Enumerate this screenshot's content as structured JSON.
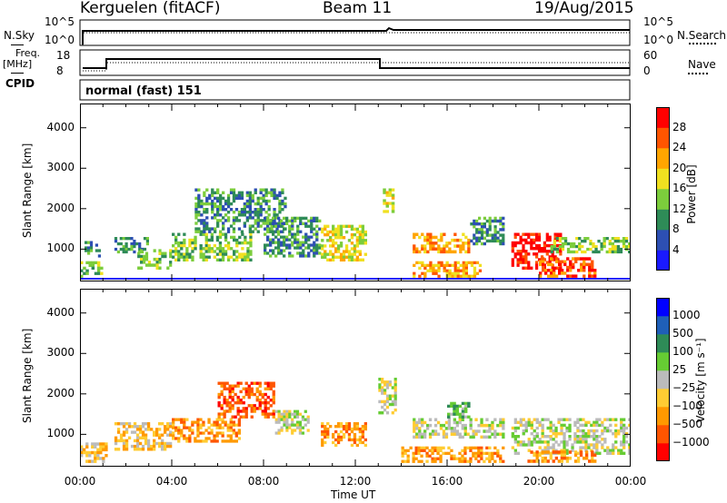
{
  "header": {
    "station": "Kerguelen (fitACF)",
    "beam": "Beam 11",
    "date": "19/Aug/2015"
  },
  "side_labels": {
    "nsky": "N.Sky",
    "freq_line1": "Freq.",
    "freq_line2": "[MHz]",
    "cpid": "CPID",
    "nsearch": "N.Search",
    "nave": "Nave"
  },
  "ticks": {
    "sky_top": "10^5",
    "sky_bottom": "10^0",
    "search_top": "10^5",
    "search_bottom": "10^0",
    "freq_top": "18",
    "freq_bottom": "8",
    "nave_top": "60",
    "nave_bottom": "0"
  },
  "cpid_text": "normal (fast) 151",
  "colors": {
    "power_scale": [
      "#1a1aff",
      "#2d4fb3",
      "#2e8b57",
      "#7ccd3c",
      "#f0e020",
      "#ffa500",
      "#ff5500",
      "#ff0000"
    ],
    "velocity_scale": [
      "#0000ff",
      "#1f5fb8",
      "#2e8b57",
      "#66cc33",
      "#bbbbbb",
      "#ffcc33",
      "#ff9900",
      "#ff5500",
      "#ff0000"
    ]
  },
  "chart_data": [
    {
      "type": "heatmap",
      "name_hint": "power",
      "xlabel": "",
      "ylabel": "Slant Range [km]",
      "ylim": [
        200,
        4600
      ],
      "xlim_hours": [
        0,
        24
      ],
      "yticks": [
        1000,
        2000,
        3000,
        4000
      ],
      "colorbar": {
        "label": "Power [dB]",
        "tick_labels": [
          "4",
          "8",
          "12",
          "16",
          "20",
          "24",
          "28"
        ]
      },
      "regions": [
        {
          "x0": 0.0,
          "x1": 1.0,
          "y0": 300,
          "y1": 700,
          "level": 3
        },
        {
          "x0": 0.2,
          "x1": 0.9,
          "y0": 800,
          "y1": 1200,
          "level": 2
        },
        {
          "x0": 1.5,
          "x1": 3.0,
          "y0": 900,
          "y1": 1300,
          "level": 2
        },
        {
          "x0": 2.5,
          "x1": 4.0,
          "y0": 500,
          "y1": 1000,
          "level": 3
        },
        {
          "x0": 4.0,
          "x1": 7.5,
          "y0": 700,
          "y1": 1400,
          "level": 3
        },
        {
          "x0": 5.0,
          "x1": 9.0,
          "y0": 1400,
          "y1": 2500,
          "level": 2
        },
        {
          "x0": 8.0,
          "x1": 10.5,
          "y0": 800,
          "y1": 1800,
          "level": 2
        },
        {
          "x0": 10.5,
          "x1": 12.5,
          "y0": 700,
          "y1": 1600,
          "level": 4
        },
        {
          "x0": 13.2,
          "x1": 13.7,
          "y0": 1900,
          "y1": 2500,
          "level": 4
        },
        {
          "x0": 14.5,
          "x1": 17.0,
          "y0": 900,
          "y1": 1400,
          "level": 5
        },
        {
          "x0": 14.5,
          "x1": 17.5,
          "y0": 300,
          "y1": 700,
          "level": 5
        },
        {
          "x0": 17.0,
          "x1": 18.5,
          "y0": 1100,
          "y1": 1800,
          "level": 2
        },
        {
          "x0": 18.8,
          "x1": 21.0,
          "y0": 500,
          "y1": 1400,
          "level": 7
        },
        {
          "x0": 20.0,
          "x1": 22.5,
          "y0": 300,
          "y1": 800,
          "level": 6
        },
        {
          "x0": 20.5,
          "x1": 24.0,
          "y0": 900,
          "y1": 1300,
          "level": 3
        }
      ]
    },
    {
      "type": "heatmap",
      "name_hint": "velocity",
      "xlabel": "Time UT",
      "ylabel": "Slant Range [km]",
      "ylim": [
        200,
        4600
      ],
      "xlim_hours": [
        0,
        24
      ],
      "xtick_labels": [
        "00:00",
        "04:00",
        "08:00",
        "12:00",
        "16:00",
        "20:00",
        "00:00"
      ],
      "yticks": [
        1000,
        2000,
        3000,
        4000
      ],
      "colorbar": {
        "label": "Velocity [m s⁻¹]",
        "tick_labels": [
          "1000",
          "500",
          "100",
          "25",
          "−25",
          "−100",
          "−500",
          "−1000"
        ]
      },
      "regions": [
        {
          "x0": 0.0,
          "x1": 1.2,
          "y0": 300,
          "y1": 800,
          "level": 5
        },
        {
          "x0": 1.5,
          "x1": 4.0,
          "y0": 600,
          "y1": 1300,
          "level": 5
        },
        {
          "x0": 4.0,
          "x1": 7.0,
          "y0": 800,
          "y1": 1400,
          "level": 6
        },
        {
          "x0": 6.0,
          "x1": 8.5,
          "y0": 1400,
          "y1": 2300,
          "level": 7
        },
        {
          "x0": 8.5,
          "x1": 10.0,
          "y0": 1000,
          "y1": 1600,
          "level": 4
        },
        {
          "x0": 10.5,
          "x1": 12.5,
          "y0": 700,
          "y1": 1300,
          "level": 6
        },
        {
          "x0": 13.0,
          "x1": 13.8,
          "y0": 1500,
          "y1": 2400,
          "level": 4
        },
        {
          "x0": 14.5,
          "x1": 18.5,
          "y0": 900,
          "y1": 1400,
          "level": 4
        },
        {
          "x0": 14.0,
          "x1": 18.5,
          "y0": 300,
          "y1": 700,
          "level": 6
        },
        {
          "x0": 16.0,
          "x1": 17.0,
          "y0": 1400,
          "y1": 1800,
          "level": 3
        },
        {
          "x0": 18.8,
          "x1": 24.0,
          "y0": 500,
          "y1": 1400,
          "level": 4
        },
        {
          "x0": 19.5,
          "x1": 22.5,
          "y0": 300,
          "y1": 600,
          "level": 6
        }
      ]
    }
  ]
}
